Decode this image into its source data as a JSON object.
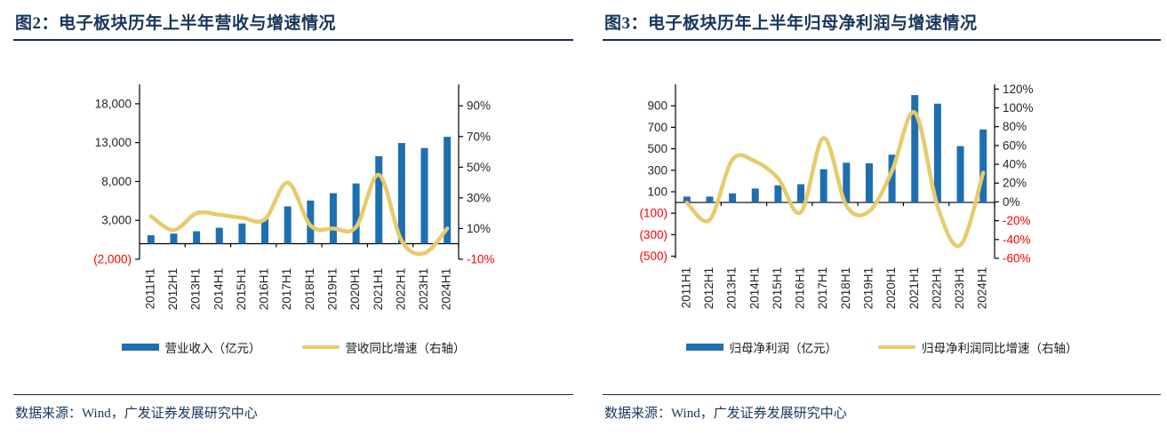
{
  "colors": {
    "bar": "#1E6FB0",
    "line": "#E7CB6C",
    "title": "#17365D",
    "source_text": "#17365D",
    "negative_tick": "#FF0000",
    "axis": "#000000"
  },
  "figures": [
    {
      "title": "图2：电子板块历年上半年营收与增速情况",
      "source": "数据来源：Wind，广发证券发展研究中心",
      "legend": {
        "bar_label": "营业收入（亿元）",
        "line_label": "营收同比增速（右轴）"
      },
      "chart_data": {
        "type": "bar+line",
        "title": "电子板块历年上半年营收与增速情况",
        "categories": [
          "2011H1",
          "2012H1",
          "2013H1",
          "2014H1",
          "2015H1",
          "2016H1",
          "2017H1",
          "2018H1",
          "2019H1",
          "2020H1",
          "2021H1",
          "2022H1",
          "2023H1",
          "2024H1"
        ],
        "series": [
          {
            "name": "营业收入（亿元）",
            "type": "bar",
            "axis": "left",
            "values": [
              1080,
              1300,
              1600,
              2050,
              2600,
              3150,
              4800,
              5550,
              6500,
              7750,
              11250,
              12950,
              12300,
              13750
            ]
          },
          {
            "name": "营收同比增速（右轴）",
            "type": "line",
            "axis": "right",
            "unit": "%",
            "values": [
              18,
              9,
              20,
              19,
              17,
              16,
              40,
              12,
              10,
              11,
              45,
              2,
              -6,
              10
            ]
          }
        ],
        "left_axis": {
          "range": [
            -2000,
            20500
          ],
          "ticks": [
            {
              "value": 18000,
              "label": "18,000"
            },
            {
              "value": 13000,
              "label": "13,000"
            },
            {
              "value": 8000,
              "label": "8,000"
            },
            {
              "value": 3000,
              "label": "3,000"
            },
            {
              "value": -2000,
              "label": "(2,000)"
            }
          ]
        },
        "right_axis": {
          "range": [
            -10,
            104
          ],
          "ticks": [
            {
              "value": 90,
              "label": "90%"
            },
            {
              "value": 70,
              "label": "70%"
            },
            {
              "value": 50,
              "label": "50%"
            },
            {
              "value": 30,
              "label": "30%"
            },
            {
              "value": 10,
              "label": "10%"
            },
            {
              "value": -10,
              "label": "-10%"
            }
          ]
        },
        "grid": false,
        "legend_position": "bottom"
      }
    },
    {
      "title": "图3：电子板块历年上半年归母净利润与增速情况",
      "source": "数据来源：Wind，广发证券发展研究中心",
      "legend": {
        "bar_label": "归母净利润（亿元）",
        "line_label": "归母净利润同比增速（右轴）"
      },
      "chart_data": {
        "type": "bar+line",
        "title": "电子板块历年上半年归母净利润与增速情况",
        "categories": [
          "2011H1",
          "2012H1",
          "2013H1",
          "2014H1",
          "2015H1",
          "2016H1",
          "2017H1",
          "2018H1",
          "2019H1",
          "2020H1",
          "2021H1",
          "2022H1",
          "2023H1",
          "2024H1"
        ],
        "series": [
          {
            "name": "归母净利润（亿元）",
            "type": "bar",
            "axis": "left",
            "values": [
              55,
              55,
              85,
              130,
              160,
              170,
              310,
              370,
              365,
              445,
              1000,
              920,
              525,
              680
            ]
          },
          {
            "name": "归母净利润同比增速（右轴）",
            "type": "line",
            "axis": "right",
            "unit": "%",
            "values": [
              -1,
              -19,
              45,
              43,
              25,
              -11,
              68,
              -4,
              -10,
              33,
              95,
              -5,
              -46,
              31
            ]
          }
        ],
        "left_axis": {
          "range": [
            -520,
            1100
          ],
          "ticks": [
            {
              "value": 900,
              "label": "900"
            },
            {
              "value": 700,
              "label": "700"
            },
            {
              "value": 500,
              "label": "500"
            },
            {
              "value": 300,
              "label": "300"
            },
            {
              "value": 100,
              "label": "100"
            },
            {
              "value": -100,
              "label": "(100)"
            },
            {
              "value": -300,
              "label": "(300)"
            },
            {
              "value": -500,
              "label": "(500)"
            }
          ]
        },
        "right_axis": {
          "range": [
            -60,
            125
          ],
          "ticks": [
            {
              "value": 120,
              "label": "120%"
            },
            {
              "value": 100,
              "label": "100%"
            },
            {
              "value": 80,
              "label": "80%"
            },
            {
              "value": 60,
              "label": "60%"
            },
            {
              "value": 40,
              "label": "40%"
            },
            {
              "value": 20,
              "label": "20%"
            },
            {
              "value": 0,
              "label": "0%"
            },
            {
              "value": -20,
              "label": "-20%"
            },
            {
              "value": -40,
              "label": "-40%"
            },
            {
              "value": -60,
              "label": "-60%"
            }
          ]
        },
        "grid": false,
        "legend_position": "bottom"
      }
    }
  ]
}
